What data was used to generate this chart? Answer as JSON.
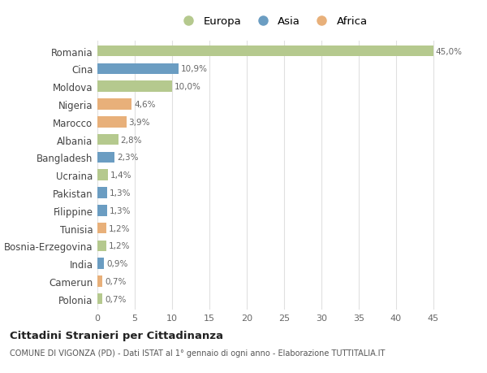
{
  "countries": [
    "Romania",
    "Cina",
    "Moldova",
    "Nigeria",
    "Marocco",
    "Albania",
    "Bangladesh",
    "Ucraina",
    "Pakistan",
    "Filippine",
    "Tunisia",
    "Bosnia-Erzegovina",
    "India",
    "Camerun",
    "Polonia"
  ],
  "values": [
    45.0,
    10.9,
    10.0,
    4.6,
    3.9,
    2.8,
    2.3,
    1.4,
    1.3,
    1.3,
    1.2,
    1.2,
    0.9,
    0.7,
    0.7
  ],
  "labels": [
    "45,0%",
    "10,9%",
    "10,0%",
    "4,6%",
    "3,9%",
    "2,8%",
    "2,3%",
    "1,4%",
    "1,3%",
    "1,3%",
    "1,2%",
    "1,2%",
    "0,9%",
    "0,7%",
    "0,7%"
  ],
  "continents": [
    "Europa",
    "Asia",
    "Europa",
    "Africa",
    "Africa",
    "Europa",
    "Asia",
    "Europa",
    "Asia",
    "Asia",
    "Africa",
    "Europa",
    "Asia",
    "Africa",
    "Europa"
  ],
  "colors": {
    "Europa": "#b5c98e",
    "Asia": "#6b9dc2",
    "Africa": "#e8b07a"
  },
  "legend_order": [
    "Europa",
    "Asia",
    "Africa"
  ],
  "title": "Cittadini Stranieri per Cittadinanza",
  "subtitle": "COMUNE DI VIGONZA (PD) - Dati ISTAT al 1° gennaio di ogni anno - Elaborazione TUTTITALIA.IT",
  "xlim": [
    0,
    47
  ],
  "xticks": [
    0,
    5,
    10,
    15,
    20,
    25,
    30,
    35,
    40,
    45
  ],
  "bg_color": "#ffffff",
  "grid_color": "#e0e0e0"
}
